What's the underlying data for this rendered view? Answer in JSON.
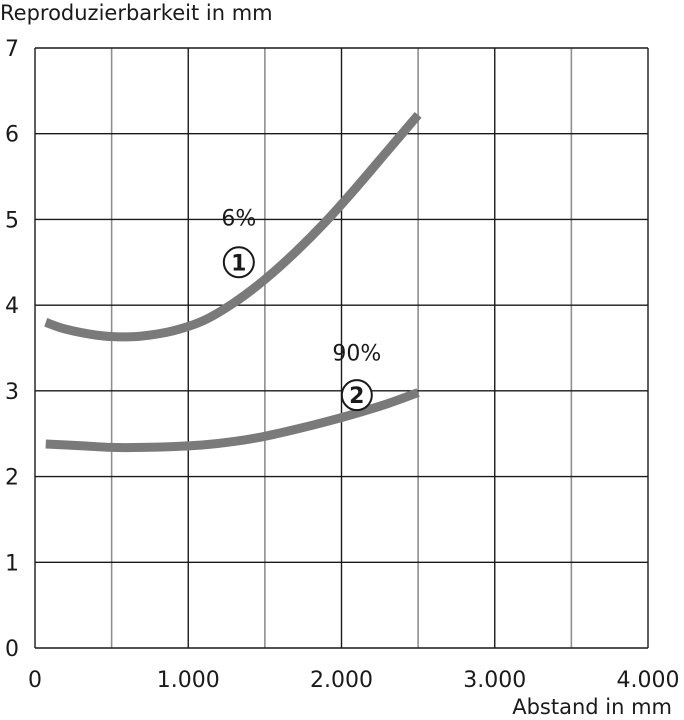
{
  "chart_data": {
    "type": "line",
    "title": "",
    "ylabel": "Reproduzierbarkeit in mm",
    "xlabel": "Abstand in mm",
    "xlim": [
      0,
      4000
    ],
    "ylim": [
      0,
      7
    ],
    "grid": true,
    "x_ticks": [
      {
        "value": 0,
        "label": "0"
      },
      {
        "value": 1000,
        "label": "1.000"
      },
      {
        "value": 2000,
        "label": "2.000"
      },
      {
        "value": 3000,
        "label": "3.000"
      },
      {
        "value": 4000,
        "label": "4.000"
      }
    ],
    "x_minor_grid": [
      500,
      1500,
      2500,
      3500
    ],
    "y_ticks": [
      {
        "value": 0,
        "label": "0"
      },
      {
        "value": 1,
        "label": "1"
      },
      {
        "value": 2,
        "label": "2"
      },
      {
        "value": 3,
        "label": "3"
      },
      {
        "value": 4,
        "label": "4"
      },
      {
        "value": 5,
        "label": "5"
      },
      {
        "value": 6,
        "label": "6"
      },
      {
        "value": 7,
        "label": "7"
      }
    ],
    "series": [
      {
        "marker": "1",
        "label": "6%",
        "color": "#7a7a7a",
        "x": [
          70,
          200,
          400,
          550,
          700,
          900,
          1100,
          1300,
          1500,
          1700,
          1900,
          2100,
          2300,
          2500
        ],
        "y": [
          3.8,
          3.72,
          3.65,
          3.63,
          3.64,
          3.7,
          3.82,
          4.03,
          4.3,
          4.62,
          4.98,
          5.38,
          5.8,
          6.22
        ]
      },
      {
        "marker": "2",
        "label": "90%",
        "color": "#7a7a7a",
        "x": [
          70,
          300,
          500,
          700,
          900,
          1100,
          1300,
          1500,
          1700,
          1900,
          2100,
          2300,
          2500
        ],
        "y": [
          2.38,
          2.36,
          2.34,
          2.34,
          2.35,
          2.37,
          2.41,
          2.47,
          2.55,
          2.64,
          2.74,
          2.85,
          2.98
        ]
      }
    ],
    "annotations": [
      {
        "series": 0,
        "text": "6%",
        "marker_text": "1",
        "x": 1330,
        "y_text": 5.02,
        "y_marker": 4.5
      },
      {
        "series": 1,
        "text": "90%",
        "marker_text": "2",
        "x": 2100,
        "y_text": 3.45,
        "y_marker": 2.95
      }
    ]
  },
  "colors": {
    "major_grid": "#1a1a1a",
    "minor_grid": "#8f8f8f",
    "curve": "#7a7a7a",
    "text": "#1a1a1a"
  }
}
